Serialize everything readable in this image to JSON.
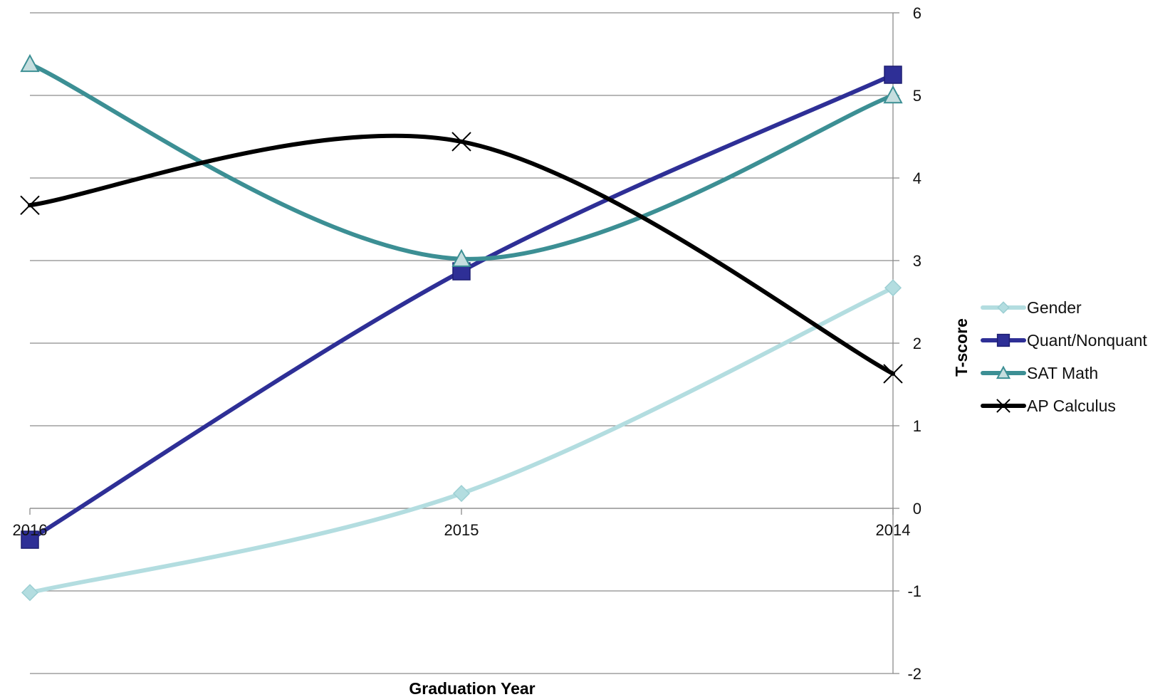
{
  "chart_data": {
    "type": "line",
    "xlabel": "Graduation Year",
    "ylabel": "T-score",
    "categories": [
      "2016",
      "2015",
      "2014"
    ],
    "ylim": [
      -2,
      6
    ],
    "yticks": [
      6,
      5,
      4,
      3,
      2,
      1,
      0,
      -1,
      -2
    ],
    "y_axis_position": "right",
    "x_axis_crosses_at": 0,
    "grid": true,
    "smooth": true,
    "legend_position": "right",
    "series": [
      {
        "name": "Gender",
        "values": [
          -1.02,
          0.18,
          2.67
        ],
        "color": "#b3dde0",
        "marker": "diamond"
      },
      {
        "name": "Quant/Nonquant",
        "values": [
          -0.38,
          2.87,
          5.25
        ],
        "color": "#2e2f96",
        "marker": "square"
      },
      {
        "name": "SAT Math",
        "values": [
          5.38,
          3.02,
          5.0
        ],
        "color": "#3c8f94",
        "marker": "triangle"
      },
      {
        "name": "AP Calculus",
        "values": [
          3.67,
          4.44,
          1.63
        ],
        "color": "#000000",
        "marker": "x"
      }
    ]
  }
}
